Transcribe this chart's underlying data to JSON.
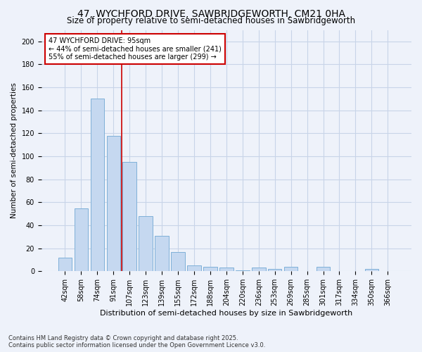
{
  "title": "47, WYCHFORD DRIVE, SAWBRIDGEWORTH, CM21 0HA",
  "subtitle": "Size of property relative to semi-detached houses in Sawbridgeworth",
  "xlabel": "Distribution of semi-detached houses by size in Sawbridgeworth",
  "ylabel": "Number of semi-detached properties",
  "categories": [
    "42sqm",
    "58sqm",
    "74sqm",
    "91sqm",
    "107sqm",
    "123sqm",
    "139sqm",
    "155sqm",
    "172sqm",
    "188sqm",
    "204sqm",
    "220sqm",
    "236sqm",
    "253sqm",
    "269sqm",
    "285sqm",
    "301sqm",
    "317sqm",
    "334sqm",
    "350sqm",
    "366sqm"
  ],
  "values": [
    12,
    55,
    150,
    118,
    95,
    48,
    31,
    17,
    5,
    4,
    3,
    1,
    3,
    2,
    4,
    0,
    4,
    0,
    0,
    2,
    0
  ],
  "bar_color": "#c5d8f0",
  "bar_edge_color": "#7fb0d8",
  "vline_x": 3.5,
  "vline_color": "#cc0000",
  "annotation_line1": "47 WYCHFORD DRIVE: 95sqm",
  "annotation_line2": "← 44% of semi-detached houses are smaller (241)",
  "annotation_line3": "55% of semi-detached houses are larger (299) →",
  "annotation_box_color": "#ffffff",
  "annotation_box_edge": "#cc0000",
  "ylim": [
    0,
    210
  ],
  "yticks": [
    0,
    20,
    40,
    60,
    80,
    100,
    120,
    140,
    160,
    180,
    200
  ],
  "grid_color": "#c8d4e8",
  "bg_color": "#eef2fa",
  "footer": "Contains HM Land Registry data © Crown copyright and database right 2025.\nContains public sector information licensed under the Open Government Licence v3.0.",
  "title_fontsize": 10,
  "subtitle_fontsize": 8.5,
  "xlabel_fontsize": 8,
  "ylabel_fontsize": 7.5,
  "tick_fontsize": 7,
  "annotation_fontsize": 7,
  "footer_fontsize": 6
}
